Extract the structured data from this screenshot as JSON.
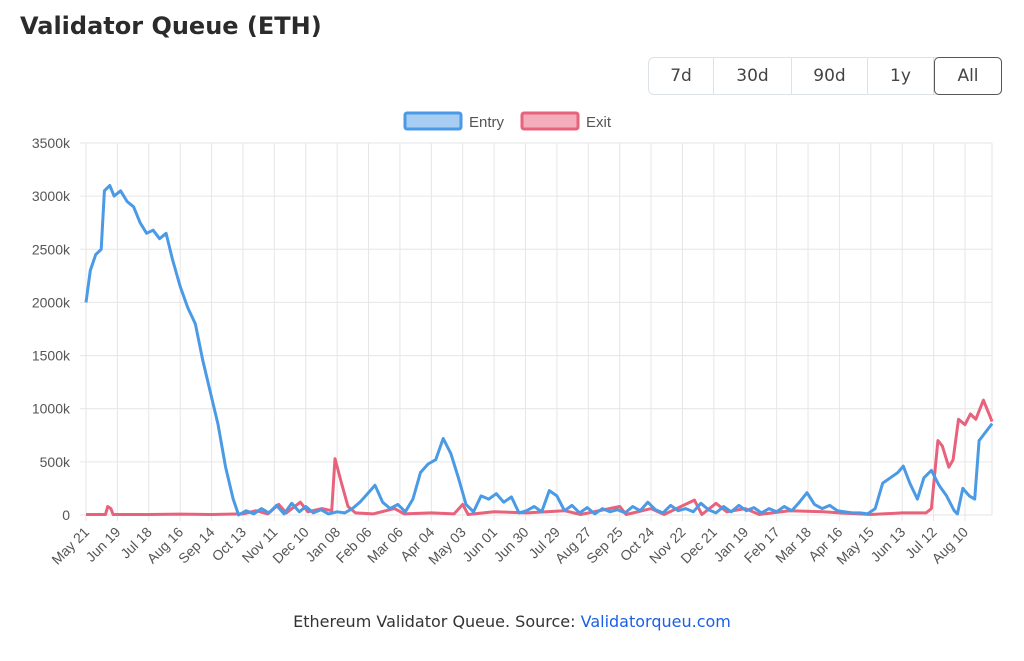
{
  "title": "Validator Queue (ETH)",
  "range_buttons": [
    {
      "label": "7d"
    },
    {
      "label": "30d"
    },
    {
      "label": "90d"
    },
    {
      "label": "1y"
    },
    {
      "label": "All",
      "active": true
    }
  ],
  "caption": {
    "text": "Ethereum Validator Queue. Source: ",
    "link_text": "Validatorqueu.com"
  },
  "chart_data": {
    "type": "line",
    "ylim": [
      0,
      3500
    ],
    "y_ticks": [
      "0",
      "500k",
      "1000k",
      "1500k",
      "2000k",
      "2500k",
      "3000k",
      "3500k"
    ],
    "x_ticks": [
      "May 21",
      "Jun 19",
      "Jul 18",
      "Aug 16",
      "Sep 14",
      "Oct 13",
      "Nov 11",
      "Dec 10",
      "Jan 08",
      "Feb 06",
      "Mar 06",
      "Apr 04",
      "May 03",
      "Jun 01",
      "Jun 30",
      "Jul 29",
      "Aug 27",
      "Sep 25",
      "Oct 24",
      "Nov 22",
      "Dec 21",
      "Jan 19",
      "Feb 17",
      "Mar 18",
      "Apr 16",
      "May 15",
      "Jun 13",
      "Jul 12",
      "Aug 10"
    ],
    "x_start": "2023-05-21",
    "x_tick_interval_days": 29,
    "grid": true,
    "legend": "top-center",
    "series": [
      {
        "name": "Entry",
        "color": "#4a9ae6",
        "fill": "#a8cdf2",
        "points": [
          [
            "2023-05-21",
            2000
          ],
          [
            "2023-05-25",
            2300
          ],
          [
            "2023-05-30",
            2450
          ],
          [
            "2023-06-04",
            2500
          ],
          [
            "2023-06-07",
            3050
          ],
          [
            "2023-06-12",
            3100
          ],
          [
            "2023-06-16",
            3000
          ],
          [
            "2023-06-22",
            3050
          ],
          [
            "2023-06-28",
            2950
          ],
          [
            "2023-07-04",
            2900
          ],
          [
            "2023-07-10",
            2750
          ],
          [
            "2023-07-16",
            2650
          ],
          [
            "2023-07-22",
            2680
          ],
          [
            "2023-07-28",
            2600
          ],
          [
            "2023-08-03",
            2650
          ],
          [
            "2023-08-09",
            2400
          ],
          [
            "2023-08-16",
            2150
          ],
          [
            "2023-08-23",
            1950
          ],
          [
            "2023-08-30",
            1800
          ],
          [
            "2023-09-06",
            1450
          ],
          [
            "2023-09-13",
            1150
          ],
          [
            "2023-09-20",
            850
          ],
          [
            "2023-09-27",
            450
          ],
          [
            "2023-10-04",
            150
          ],
          [
            "2023-10-09",
            0
          ],
          [
            "2023-10-16",
            40
          ],
          [
            "2023-10-23",
            10
          ],
          [
            "2023-10-30",
            60
          ],
          [
            "2023-11-06",
            20
          ],
          [
            "2023-11-13",
            90
          ],
          [
            "2023-11-20",
            10
          ],
          [
            "2023-11-27",
            110
          ],
          [
            "2023-12-04",
            30
          ],
          [
            "2023-12-10",
            80
          ],
          [
            "2023-12-17",
            20
          ],
          [
            "2023-12-24",
            50
          ],
          [
            "2023-12-31",
            10
          ],
          [
            "2024-01-08",
            30
          ],
          [
            "2024-01-15",
            20
          ],
          [
            "2024-01-22",
            60
          ],
          [
            "2024-01-29",
            120
          ],
          [
            "2024-02-05",
            200
          ],
          [
            "2024-02-12",
            280
          ],
          [
            "2024-02-19",
            120
          ],
          [
            "2024-02-26",
            60
          ],
          [
            "2024-03-04",
            100
          ],
          [
            "2024-03-11",
            30
          ],
          [
            "2024-03-18",
            150
          ],
          [
            "2024-03-25",
            400
          ],
          [
            "2024-04-01",
            480
          ],
          [
            "2024-04-08",
            520
          ],
          [
            "2024-04-15",
            720
          ],
          [
            "2024-04-22",
            580
          ],
          [
            "2024-04-29",
            350
          ],
          [
            "2024-05-06",
            100
          ],
          [
            "2024-05-13",
            30
          ],
          [
            "2024-05-20",
            180
          ],
          [
            "2024-05-27",
            150
          ],
          [
            "2024-06-03",
            200
          ],
          [
            "2024-06-10",
            120
          ],
          [
            "2024-06-17",
            170
          ],
          [
            "2024-06-24",
            20
          ],
          [
            "2024-07-01",
            40
          ],
          [
            "2024-07-08",
            80
          ],
          [
            "2024-07-15",
            30
          ],
          [
            "2024-07-22",
            230
          ],
          [
            "2024-07-29",
            180
          ],
          [
            "2024-08-05",
            40
          ],
          [
            "2024-08-12",
            90
          ],
          [
            "2024-08-19",
            20
          ],
          [
            "2024-08-26",
            70
          ],
          [
            "2024-09-02",
            10
          ],
          [
            "2024-09-09",
            60
          ],
          [
            "2024-09-16",
            30
          ],
          [
            "2024-09-23",
            50
          ],
          [
            "2024-09-30",
            20
          ],
          [
            "2024-10-07",
            80
          ],
          [
            "2024-10-14",
            40
          ],
          [
            "2024-10-21",
            120
          ],
          [
            "2024-10-28",
            50
          ],
          [
            "2024-11-04",
            20
          ],
          [
            "2024-11-11",
            90
          ],
          [
            "2024-11-18",
            40
          ],
          [
            "2024-11-25",
            60
          ],
          [
            "2024-12-02",
            30
          ],
          [
            "2024-12-09",
            110
          ],
          [
            "2024-12-16",
            50
          ],
          [
            "2024-12-23",
            20
          ],
          [
            "2024-12-30",
            80
          ],
          [
            "2025-01-06",
            30
          ],
          [
            "2025-01-13",
            90
          ],
          [
            "2025-01-20",
            40
          ],
          [
            "2025-01-27",
            70
          ],
          [
            "2025-02-03",
            20
          ],
          [
            "2025-02-10",
            60
          ],
          [
            "2025-02-17",
            30
          ],
          [
            "2025-02-24",
            80
          ],
          [
            "2025-03-03",
            40
          ],
          [
            "2025-03-10",
            120
          ],
          [
            "2025-03-17",
            210
          ],
          [
            "2025-03-24",
            100
          ],
          [
            "2025-03-31",
            60
          ],
          [
            "2025-04-07",
            90
          ],
          [
            "2025-04-14",
            40
          ],
          [
            "2025-04-21",
            30
          ],
          [
            "2025-04-28",
            20
          ],
          [
            "2025-05-05",
            20
          ],
          [
            "2025-05-12",
            10
          ],
          [
            "2025-05-19",
            60
          ],
          [
            "2025-05-26",
            300
          ],
          [
            "2025-06-02",
            350
          ],
          [
            "2025-06-09",
            400
          ],
          [
            "2025-06-14",
            460
          ],
          [
            "2025-06-20",
            300
          ],
          [
            "2025-06-27",
            150
          ],
          [
            "2025-07-03",
            350
          ],
          [
            "2025-07-10",
            420
          ],
          [
            "2025-07-17",
            280
          ],
          [
            "2025-07-24",
            180
          ],
          [
            "2025-07-31",
            40
          ],
          [
            "2025-08-03",
            10
          ],
          [
            "2025-08-08",
            250
          ],
          [
            "2025-08-14",
            180
          ],
          [
            "2025-08-19",
            150
          ],
          [
            "2025-08-23",
            700
          ],
          [
            "2025-08-29",
            780
          ],
          [
            "2025-09-04",
            860
          ]
        ]
      },
      {
        "name": "Exit",
        "color": "#e8627c",
        "fill": "#f4aebb",
        "points": [
          [
            "2023-05-21",
            5
          ],
          [
            "2023-06-08",
            5
          ],
          [
            "2023-06-10",
            80
          ],
          [
            "2023-06-13",
            60
          ],
          [
            "2023-06-15",
            5
          ],
          [
            "2023-07-18",
            5
          ],
          [
            "2023-08-16",
            8
          ],
          [
            "2023-09-14",
            5
          ],
          [
            "2023-10-13",
            10
          ],
          [
            "2023-10-25",
            40
          ],
          [
            "2023-11-05",
            10
          ],
          [
            "2023-11-15",
            100
          ],
          [
            "2023-11-22",
            20
          ],
          [
            "2023-12-05",
            120
          ],
          [
            "2023-12-12",
            30
          ],
          [
            "2023-12-25",
            60
          ],
          [
            "2024-01-03",
            40
          ],
          [
            "2024-01-06",
            530
          ],
          [
            "2024-01-12",
            300
          ],
          [
            "2024-01-18",
            80
          ],
          [
            "2024-01-25",
            20
          ],
          [
            "2024-02-10",
            10
          ],
          [
            "2024-03-01",
            60
          ],
          [
            "2024-03-10",
            10
          ],
          [
            "2024-04-04",
            20
          ],
          [
            "2024-04-25",
            10
          ],
          [
            "2024-05-03",
            100
          ],
          [
            "2024-05-08",
            5
          ],
          [
            "2024-06-01",
            30
          ],
          [
            "2024-07-01",
            20
          ],
          [
            "2024-08-05",
            40
          ],
          [
            "2024-08-20",
            5
          ],
          [
            "2024-09-25",
            80
          ],
          [
            "2024-10-01",
            5
          ],
          [
            "2024-10-24",
            60
          ],
          [
            "2024-11-05",
            5
          ],
          [
            "2024-12-03",
            140
          ],
          [
            "2024-12-10",
            5
          ],
          [
            "2024-12-23",
            110
          ],
          [
            "2025-01-02",
            30
          ],
          [
            "2025-01-19",
            60
          ],
          [
            "2025-02-01",
            5
          ],
          [
            "2025-03-01",
            40
          ],
          [
            "2025-04-01",
            30
          ],
          [
            "2025-04-16",
            20
          ],
          [
            "2025-05-15",
            5
          ],
          [
            "2025-06-13",
            20
          ],
          [
            "2025-07-05",
            20
          ],
          [
            "2025-07-10",
            60
          ],
          [
            "2025-07-16",
            700
          ],
          [
            "2025-07-20",
            650
          ],
          [
            "2025-07-26",
            450
          ],
          [
            "2025-07-30",
            520
          ],
          [
            "2025-08-04",
            900
          ],
          [
            "2025-08-10",
            850
          ],
          [
            "2025-08-15",
            950
          ],
          [
            "2025-08-20",
            900
          ],
          [
            "2025-08-27",
            1080
          ],
          [
            "2025-09-04",
            880
          ]
        ]
      }
    ]
  }
}
